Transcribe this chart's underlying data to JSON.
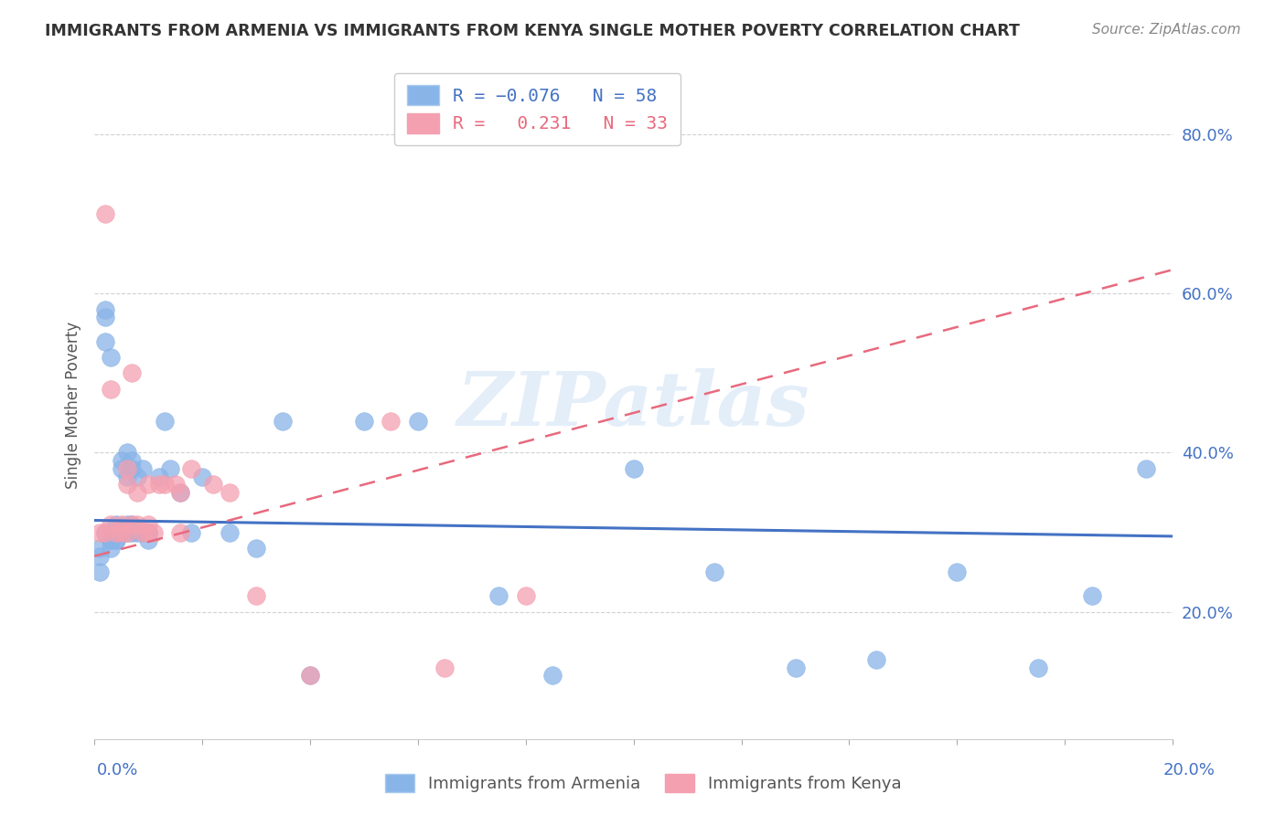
{
  "title": "IMMIGRANTS FROM ARMENIA VS IMMIGRANTS FROM KENYA SINGLE MOTHER POVERTY CORRELATION CHART",
  "source": "Source: ZipAtlas.com",
  "ylabel": "Single Mother Poverty",
  "y_ticks": [
    0.2,
    0.4,
    0.6,
    0.8
  ],
  "y_tick_labels": [
    "20.0%",
    "40.0%",
    "60.0%",
    "80.0%"
  ],
  "x_range": [
    0.0,
    0.2
  ],
  "y_range": [
    0.04,
    0.88
  ],
  "color_armenia": "#89b4e8",
  "color_kenya": "#f4a0b0",
  "line_armenia": "#4472c4",
  "line_kenya": "#e8697d",
  "watermark": "ZIPatlas",
  "armenia_x": [
    0.001,
    0.001,
    0.001,
    0.002,
    0.002,
    0.002,
    0.002,
    0.003,
    0.003,
    0.003,
    0.003,
    0.003,
    0.004,
    0.004,
    0.004,
    0.004,
    0.004,
    0.005,
    0.005,
    0.005,
    0.005,
    0.006,
    0.006,
    0.006,
    0.006,
    0.007,
    0.007,
    0.007,
    0.007,
    0.008,
    0.008,
    0.009,
    0.009,
    0.01,
    0.01,
    0.01,
    0.012,
    0.013,
    0.014,
    0.016,
    0.018,
    0.02,
    0.025,
    0.03,
    0.035,
    0.04,
    0.05,
    0.06,
    0.075,
    0.085,
    0.1,
    0.115,
    0.13,
    0.145,
    0.16,
    0.175,
    0.185,
    0.195
  ],
  "armenia_y": [
    0.28,
    0.27,
    0.25,
    0.57,
    0.58,
    0.54,
    0.3,
    0.52,
    0.29,
    0.29,
    0.28,
    0.3,
    0.3,
    0.3,
    0.29,
    0.31,
    0.29,
    0.39,
    0.38,
    0.3,
    0.3,
    0.37,
    0.4,
    0.3,
    0.31,
    0.38,
    0.39,
    0.31,
    0.3,
    0.37,
    0.3,
    0.38,
    0.3,
    0.3,
    0.3,
    0.29,
    0.37,
    0.44,
    0.38,
    0.35,
    0.3,
    0.37,
    0.3,
    0.28,
    0.44,
    0.12,
    0.44,
    0.44,
    0.22,
    0.12,
    0.38,
    0.25,
    0.13,
    0.14,
    0.25,
    0.13,
    0.22,
    0.38
  ],
  "kenya_x": [
    0.001,
    0.002,
    0.002,
    0.003,
    0.003,
    0.004,
    0.005,
    0.005,
    0.006,
    0.006,
    0.006,
    0.007,
    0.007,
    0.008,
    0.008,
    0.009,
    0.01,
    0.01,
    0.01,
    0.011,
    0.012,
    0.013,
    0.015,
    0.016,
    0.016,
    0.018,
    0.022,
    0.025,
    0.03,
    0.04,
    0.055,
    0.065,
    0.08
  ],
  "kenya_y": [
    0.3,
    0.7,
    0.3,
    0.48,
    0.31,
    0.3,
    0.31,
    0.3,
    0.36,
    0.38,
    0.3,
    0.5,
    0.31,
    0.35,
    0.31,
    0.3,
    0.36,
    0.31,
    0.3,
    0.3,
    0.36,
    0.36,
    0.36,
    0.35,
    0.3,
    0.38,
    0.36,
    0.35,
    0.22,
    0.12,
    0.44,
    0.13,
    0.22
  ],
  "armenia_trend": [
    0.315,
    0.295
  ],
  "kenya_trend": [
    0.27,
    0.63
  ]
}
